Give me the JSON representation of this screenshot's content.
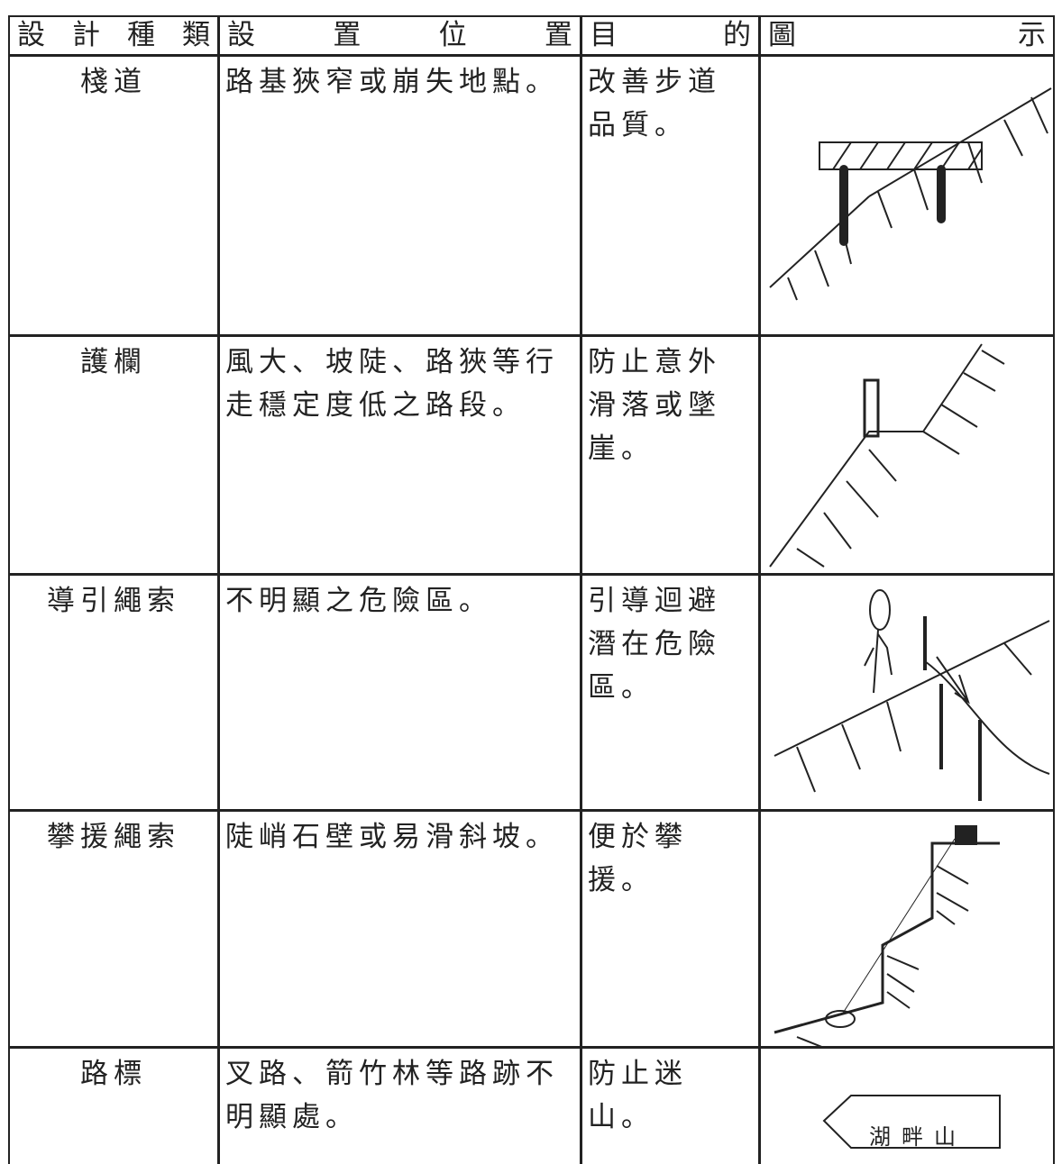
{
  "header": [
    "設計種類",
    "設置位置",
    "目的",
    "圖示"
  ],
  "rows": [
    {
      "type": "棧道",
      "location": "路基狹窄或崩失地點。",
      "purpose": "改善步道品質。"
    },
    {
      "type": "護欄",
      "location": "風大、坡陡、路狹等行走穩定度低之路段。",
      "purpose": "防止意外滑落或墜崖。"
    },
    {
      "type": "導引繩索",
      "location": "不明顯之危險區。",
      "purpose": "引導迴避潛在危險區。"
    },
    {
      "type": "攀援繩索",
      "location": "陡峭石壁或易滑斜坡。",
      "purpose": "便於攀援。"
    },
    {
      "type": "路標",
      "location": "叉路、箭竹林等路跡不明顯處。",
      "purpose": "防止迷山。",
      "sign": "湖畔山"
    }
  ]
}
